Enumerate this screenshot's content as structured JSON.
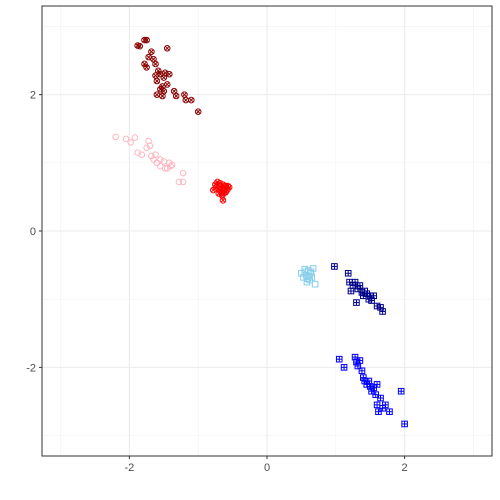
{
  "chart_data": {
    "type": "scatter",
    "title": "",
    "xlabel": "",
    "ylabel": "",
    "xlim": [
      -3.27,
      3.27
    ],
    "ylim": [
      -3.3,
      3.3
    ],
    "x_ticks": [
      -2,
      0,
      2
    ],
    "y_ticks": [
      -2,
      0,
      2
    ],
    "x_tick_labels": [
      "-2",
      "0",
      "2"
    ],
    "y_tick_labels": [
      "-2",
      "0",
      "2"
    ],
    "grid": true,
    "legend": "none",
    "series": [
      {
        "color": "#8b0000",
        "marker": "circle-cross",
        "points": [
          [
            -1.88,
            2.72
          ],
          [
            -1.85,
            2.71
          ],
          [
            -1.78,
            2.8
          ],
          [
            -1.75,
            2.8
          ],
          [
            -1.72,
            2.55
          ],
          [
            -1.68,
            2.63
          ],
          [
            -1.65,
            2.52
          ],
          [
            -1.78,
            2.45
          ],
          [
            -1.75,
            2.4
          ],
          [
            -1.62,
            2.45
          ],
          [
            -1.58,
            2.35
          ],
          [
            -1.62,
            2.28
          ],
          [
            -1.6,
            2.2
          ],
          [
            -1.55,
            2.3
          ],
          [
            -1.5,
            2.25
          ],
          [
            -1.48,
            2.32
          ],
          [
            -1.52,
            2.12
          ],
          [
            -1.55,
            2.08
          ],
          [
            -1.5,
            2.05
          ],
          [
            -1.45,
            2.15
          ],
          [
            -1.42,
            2.3
          ],
          [
            -1.35,
            2.05
          ],
          [
            -1.32,
            1.98
          ],
          [
            -1.2,
            2.0
          ],
          [
            -1.18,
            1.92
          ],
          [
            -1.1,
            1.92
          ],
          [
            -1.45,
            2.68
          ],
          [
            -1.6,
            2.0
          ],
          [
            -1.52,
            1.98
          ],
          [
            -1.0,
            1.75
          ]
        ]
      },
      {
        "color": "#ffb6c1",
        "marker": "circle-open",
        "points": [
          [
            -2.2,
            1.38
          ],
          [
            -2.05,
            1.35
          ],
          [
            -1.98,
            1.3
          ],
          [
            -1.92,
            1.37
          ],
          [
            -1.88,
            1.15
          ],
          [
            -1.82,
            1.12
          ],
          [
            -1.75,
            1.22
          ],
          [
            -1.72,
            1.32
          ],
          [
            -1.7,
            1.25
          ],
          [
            -1.68,
            1.1
          ],
          [
            -1.62,
            1.12
          ],
          [
            -1.6,
            1.0
          ],
          [
            -1.55,
            0.95
          ],
          [
            -1.5,
            1.02
          ],
          [
            -1.45,
            0.92
          ],
          [
            -1.42,
            1.0
          ],
          [
            -1.38,
            0.97
          ],
          [
            -1.22,
            0.85
          ],
          [
            -1.28,
            0.72
          ],
          [
            -1.22,
            0.72
          ],
          [
            -1.48,
            0.92
          ],
          [
            -1.55,
            1.05
          ],
          [
            -1.65,
            1.05
          ],
          [
            -1.4,
            0.95
          ]
        ]
      },
      {
        "color": "#ff0000",
        "marker": "circle-cross",
        "points": [
          [
            -0.78,
            0.6
          ],
          [
            -0.75,
            0.68
          ],
          [
            -0.72,
            0.72
          ],
          [
            -0.7,
            0.62
          ],
          [
            -0.68,
            0.65
          ],
          [
            -0.66,
            0.58
          ],
          [
            -0.64,
            0.68
          ],
          [
            -0.62,
            0.62
          ],
          [
            -0.6,
            0.66
          ],
          [
            -0.58,
            0.6
          ],
          [
            -0.55,
            0.64
          ],
          [
            -0.7,
            0.55
          ],
          [
            -0.65,
            0.52
          ],
          [
            -0.6,
            0.57
          ],
          [
            -0.74,
            0.64
          ],
          [
            -0.68,
            0.7
          ],
          [
            -0.62,
            0.56
          ],
          [
            -0.57,
            0.66
          ],
          [
            -0.66,
            0.62
          ],
          [
            -0.64,
            0.45
          ]
        ]
      },
      {
        "color": "#87ceeb",
        "marker": "square-open",
        "points": [
          [
            0.5,
            -0.62
          ],
          [
            0.53,
            -0.68
          ],
          [
            0.55,
            -0.6
          ],
          [
            0.57,
            -0.65
          ],
          [
            0.59,
            -0.7
          ],
          [
            0.61,
            -0.66
          ],
          [
            0.6,
            -0.58
          ],
          [
            0.63,
            -0.62
          ],
          [
            0.65,
            -0.68
          ],
          [
            0.67,
            -0.55
          ],
          [
            0.62,
            -0.72
          ],
          [
            0.58,
            -0.75
          ],
          [
            0.7,
            -0.78
          ],
          [
            0.55,
            -0.56
          ],
          [
            0.64,
            -0.6
          ]
        ]
      },
      {
        "color": "#00008b",
        "marker": "square-cross",
        "points": [
          [
            0.98,
            -0.52
          ],
          [
            1.18,
            -0.62
          ],
          [
            1.2,
            -0.75
          ],
          [
            1.25,
            -0.8
          ],
          [
            1.28,
            -0.75
          ],
          [
            1.32,
            -0.85
          ],
          [
            1.35,
            -0.8
          ],
          [
            1.38,
            -0.9
          ],
          [
            1.4,
            -0.95
          ],
          [
            1.42,
            -0.88
          ],
          [
            1.45,
            -0.92
          ],
          [
            1.48,
            -1.0
          ],
          [
            1.5,
            -0.95
          ],
          [
            1.52,
            -1.02
          ],
          [
            1.55,
            -0.95
          ],
          [
            1.6,
            -1.1
          ],
          [
            1.65,
            -1.12
          ],
          [
            1.68,
            -1.18
          ],
          [
            1.3,
            -1.05
          ],
          [
            1.22,
            -0.88
          ]
        ]
      },
      {
        "color": "#0000ff",
        "marker": "square-cross",
        "points": [
          [
            1.05,
            -1.88
          ],
          [
            1.12,
            -2.0
          ],
          [
            1.28,
            -1.85
          ],
          [
            1.3,
            -1.92
          ],
          [
            1.32,
            -1.98
          ],
          [
            1.35,
            -1.9
          ],
          [
            1.38,
            -2.05
          ],
          [
            1.4,
            -2.15
          ],
          [
            1.42,
            -2.2
          ],
          [
            1.45,
            -2.25
          ],
          [
            1.48,
            -2.2
          ],
          [
            1.5,
            -2.28
          ],
          [
            1.52,
            -2.35
          ],
          [
            1.55,
            -2.3
          ],
          [
            1.58,
            -2.4
          ],
          [
            1.6,
            -2.55
          ],
          [
            1.62,
            -2.65
          ],
          [
            1.65,
            -2.45
          ],
          [
            1.68,
            -2.6
          ],
          [
            1.72,
            -2.55
          ],
          [
            1.78,
            -2.65
          ],
          [
            1.95,
            -2.35
          ],
          [
            2.0,
            -2.83
          ],
          [
            1.6,
            -2.25
          ]
        ]
      }
    ]
  }
}
